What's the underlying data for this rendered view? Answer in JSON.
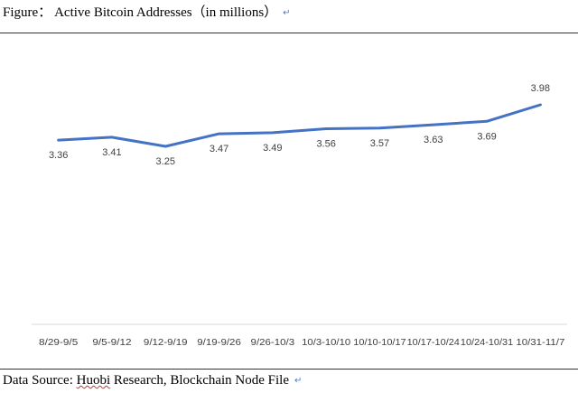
{
  "figure": {
    "caption": "Figure： Active Bitcoin Addresses（in millions）",
    "source_prefix": "Data Source: ",
    "source_underlined": "Huobi",
    "source_rest": " Research, Blockchain Node File"
  },
  "chart_data": {
    "type": "line",
    "categories": [
      "8/29-9/5",
      "9/5-9/12",
      "9/12-9/19",
      "9/19-9/26",
      "9/26-10/3",
      "10/3-10/10",
      "10/10-10/17",
      "10/17-10/24",
      "10/24-10/31",
      "10/31-11/7"
    ],
    "series": [
      {
        "values": [
          3.36,
          3.41,
          3.25,
          3.47,
          3.49,
          3.56,
          3.57,
          3.63,
          3.69,
          3.98
        ]
      }
    ],
    "title": "",
    "xlabel": "",
    "ylabel": "",
    "line_color": "#4472c4",
    "grid": false,
    "legend": "none"
  }
}
